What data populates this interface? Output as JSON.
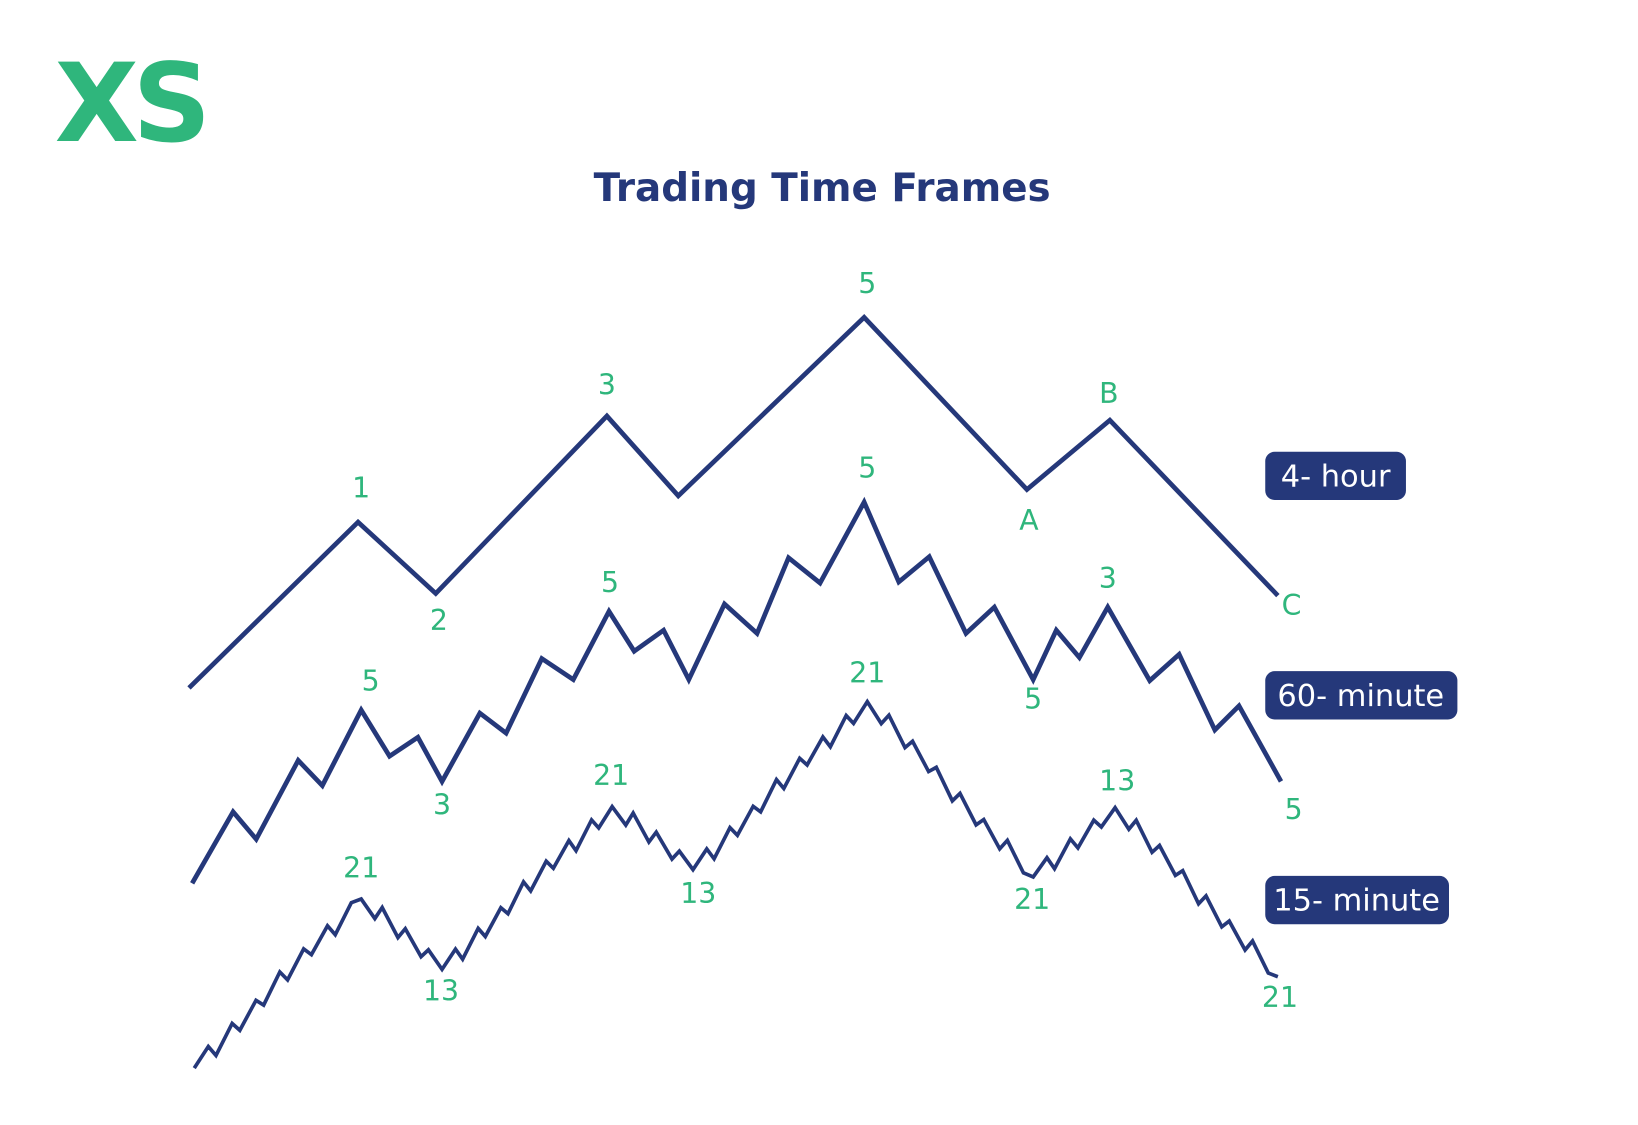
{
  "logo": "XS",
  "title": "Trading Time Frames",
  "waves": [
    {
      "timeframe": "4- hour",
      "labels": [
        "1",
        "2",
        "3",
        "5",
        "A",
        "B",
        "C"
      ]
    },
    {
      "timeframe": "60- minute",
      "labels": [
        "5",
        "3",
        "5",
        "5",
        "5",
        "3",
        "5"
      ]
    },
    {
      "timeframe": "15- minute",
      "labels": [
        "21",
        "13",
        "21",
        "13",
        "21",
        "21",
        "13",
        "21"
      ]
    }
  ]
}
